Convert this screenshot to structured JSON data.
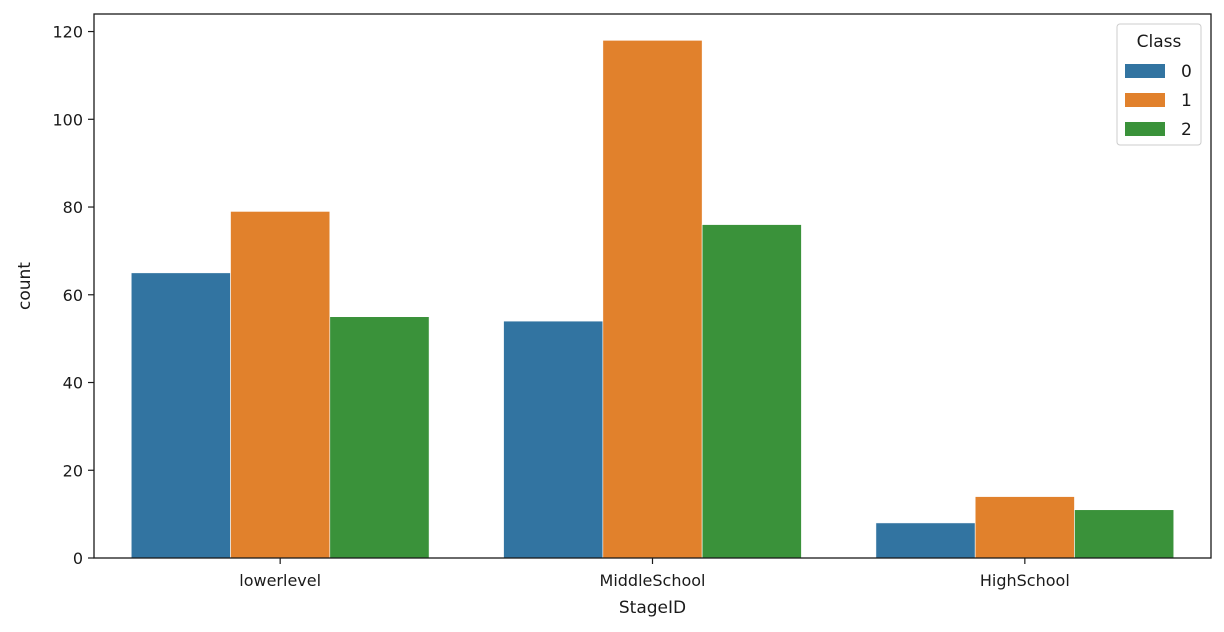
{
  "chart_data": {
    "type": "bar",
    "xlabel": "StageID",
    "ylabel": "count",
    "categories": [
      "lowerlevel",
      "MiddleSchool",
      "HighSchool"
    ],
    "series": [
      {
        "name": "0",
        "color": "#3274a1",
        "values": [
          65,
          54,
          8
        ]
      },
      {
        "name": "1",
        "color": "#e1812c",
        "values": [
          79,
          118,
          14
        ]
      },
      {
        "name": "2",
        "color": "#3a923a",
        "values": [
          55,
          76,
          11
        ]
      }
    ],
    "ylim": [
      0,
      124
    ],
    "yticks": [
      0,
      20,
      40,
      60,
      80,
      100,
      120
    ],
    "legend": {
      "title": "Class",
      "position": "top-right"
    },
    "grid": false
  }
}
